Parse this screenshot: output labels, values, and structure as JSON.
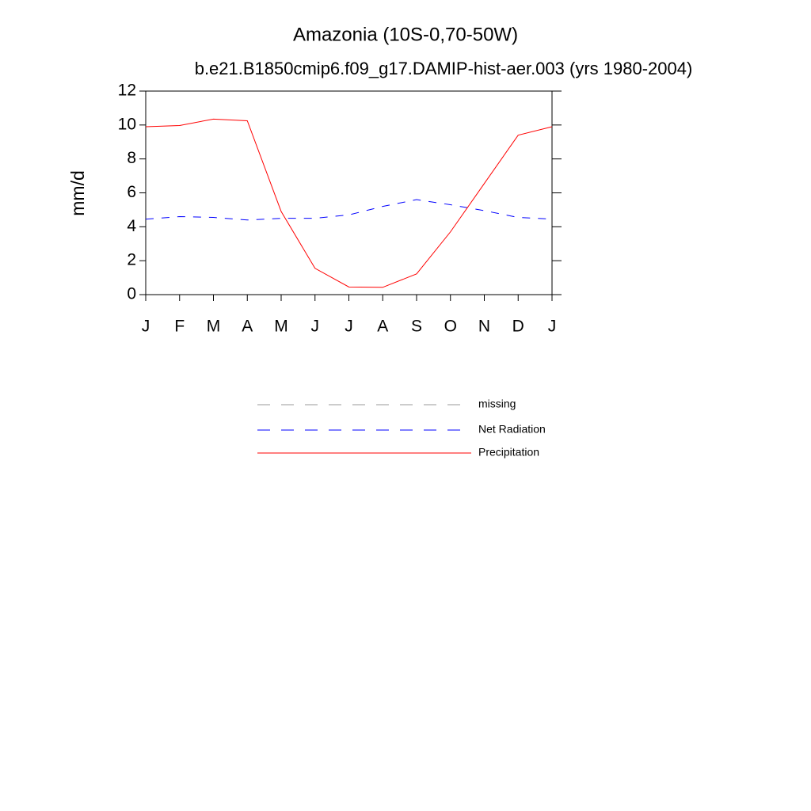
{
  "chart_data": {
    "type": "line",
    "title": "Amazonia (10S-0,70-50W)",
    "subtitle": "b.e21.B1850cmip6.f09_g17.DAMIP-hist-aer.003 (yrs 1980-2004)",
    "y_label": "mm/d",
    "categories": [
      "J",
      "F",
      "M",
      "A",
      "M",
      "J",
      "J",
      "A",
      "S",
      "O",
      "N",
      "D",
      "J"
    ],
    "series": [
      {
        "name": "missing",
        "color": "#999999",
        "dash": "dashed",
        "values": [
          null,
          null,
          null,
          null,
          null,
          null,
          null,
          null,
          null,
          null,
          null,
          null,
          null
        ]
      },
      {
        "name": "Net Radiation",
        "color": "#0000ff",
        "dash": "dashed",
        "values": [
          4.45,
          4.6,
          4.55,
          4.4,
          4.5,
          4.5,
          4.7,
          5.2,
          5.6,
          5.3,
          4.95,
          4.55,
          4.45
        ]
      },
      {
        "name": "Precipitation",
        "color": "#ff0000",
        "dash": "solid",
        "values": [
          9.9,
          9.97,
          10.35,
          10.25,
          4.9,
          1.55,
          0.45,
          0.43,
          1.22,
          3.7,
          6.55,
          9.4,
          9.9
        ]
      }
    ],
    "ylim": [
      0,
      12
    ],
    "yticks": [
      0,
      2,
      4,
      6,
      8,
      10,
      12
    ],
    "grid": false
  }
}
